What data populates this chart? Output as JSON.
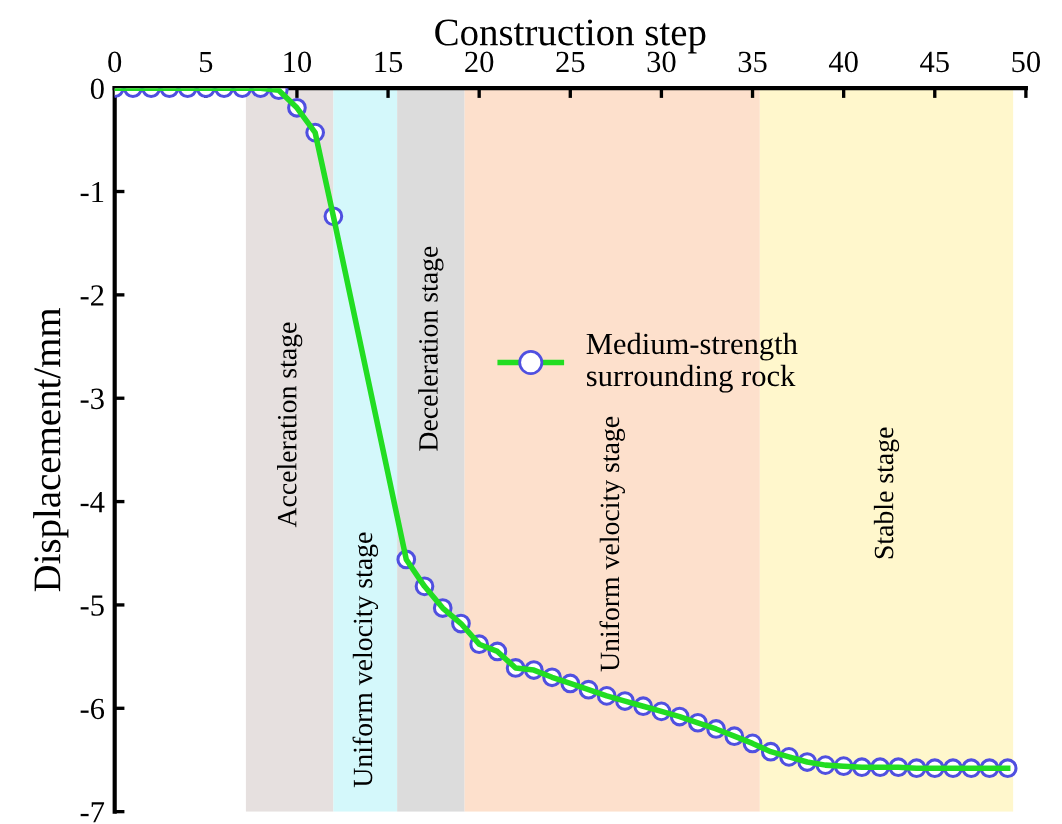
{
  "chart_data": {
    "type": "line",
    "xlabel": "Construction step",
    "ylabel": "Displacement/mm",
    "x": [
      0,
      1,
      2,
      3,
      4,
      5,
      6,
      7,
      8,
      9,
      10,
      11,
      12,
      16,
      17,
      18,
      19,
      20,
      21,
      22,
      23,
      24,
      25,
      26,
      27,
      28,
      29,
      30,
      31,
      32,
      33,
      34,
      35,
      36,
      37,
      38,
      39,
      40,
      41,
      42,
      43,
      44,
      45,
      46,
      47,
      48,
      49
    ],
    "series": [
      {
        "name": "Medium-strength\nsurrounding rock",
        "color": "#22dd22",
        "values": [
          0,
          0,
          0,
          0,
          0,
          0,
          0,
          0,
          0,
          -0.02,
          -0.19,
          -0.43,
          -1.24,
          -4.56,
          -4.82,
          -5.03,
          -5.18,
          -5.38,
          -5.45,
          -5.61,
          -5.63,
          -5.7,
          -5.76,
          -5.82,
          -5.88,
          -5.93,
          -5.98,
          -6.03,
          -6.08,
          -6.14,
          -6.2,
          -6.27,
          -6.34,
          -6.42,
          -6.47,
          -6.52,
          -6.55,
          -6.56,
          -6.57,
          -6.57,
          -6.57,
          -6.58,
          -6.58,
          -6.58,
          -6.58,
          -6.58,
          -6.58
        ]
      }
    ],
    "xlim": [
      0,
      50
    ],
    "xticks": [
      0,
      5,
      10,
      15,
      20,
      25,
      30,
      35,
      40,
      45,
      50
    ],
    "ylim": [
      -7,
      0
    ],
    "yticks": [
      -7,
      -6,
      -5,
      -4,
      -3,
      -2,
      -1,
      0
    ],
    "bands": [
      {
        "axis": "x",
        "from": 7.2,
        "to": 12,
        "label": "Acceleration stage",
        "color": "#e6e0df"
      },
      {
        "axis": "x",
        "from": 12,
        "to": 15.5,
        "label": "Uniform velocity stage",
        "color": "#d4f8fb"
      },
      {
        "axis": "x",
        "from": 15.5,
        "to": 19.2,
        "label": "Deceleration stage",
        "color": "#dcdcdc"
      },
      {
        "axis": "x",
        "from": 19.2,
        "to": 35.4,
        "label": "Uniform velocity stage",
        "color": "#fde0cc"
      },
      {
        "axis": "x",
        "from": 35.4,
        "to": 49.3,
        "label": "Stable stage",
        "color": "#fff7cc"
      }
    ],
    "marker": "circle",
    "line_style": "solid",
    "legend": "top right",
    "grid": false
  }
}
